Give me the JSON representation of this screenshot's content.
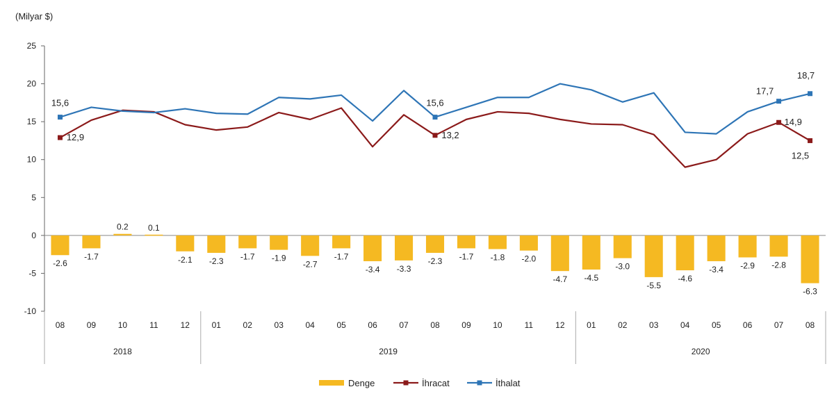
{
  "chart_data": {
    "type": "bar+line",
    "unit_label": "(Milyar $)",
    "categories": [
      "08",
      "09",
      "10",
      "11",
      "12",
      "01",
      "02",
      "03",
      "04",
      "05",
      "06",
      "07",
      "08",
      "09",
      "10",
      "11",
      "12",
      "01",
      "02",
      "03",
      "04",
      "05",
      "06",
      "07",
      "08"
    ],
    "year_groups": [
      {
        "label": "2018",
        "start": 0,
        "count": 5
      },
      {
        "label": "2019",
        "start": 5,
        "count": 12
      },
      {
        "label": "2020",
        "start": 17,
        "count": 8
      }
    ],
    "ylim": [
      -10,
      25
    ],
    "yticks": [
      -10,
      -5,
      0,
      5,
      10,
      15,
      20,
      25
    ],
    "series": [
      {
        "name": "Denge",
        "kind": "bar",
        "color": "#F5B922",
        "values": [
          -2.6,
          -1.7,
          0.2,
          0.1,
          -2.1,
          -2.3,
          -1.7,
          -1.9,
          -2.7,
          -1.7,
          -3.4,
          -3.3,
          -2.3,
          -1.7,
          -1.8,
          -2.0,
          -4.7,
          -4.5,
          -3.0,
          -5.5,
          -4.6,
          -3.4,
          -2.9,
          -2.8,
          -6.3
        ],
        "labels": [
          "-2.6",
          "-1.7",
          "0.2",
          "0.1",
          "-2.1",
          "-2.3",
          "-1.7",
          "-1.9",
          "-2.7",
          "-1.7",
          "-3.4",
          "-3.3",
          "-2.3",
          "-1.7",
          "-1.8",
          "-2.0",
          "-4.7",
          "-4.5",
          "-3.0",
          "-5.5",
          "-4.6",
          "-3.4",
          "-2.9",
          "-2.8",
          "-6.3"
        ]
      },
      {
        "name": "İhracat",
        "kind": "line",
        "color": "#8B1A1A",
        "values": [
          12.9,
          15.2,
          16.5,
          16.3,
          14.6,
          13.9,
          14.3,
          16.2,
          15.3,
          16.8,
          11.7,
          15.9,
          13.2,
          15.3,
          16.3,
          16.1,
          15.3,
          14.7,
          14.6,
          13.3,
          9.0,
          10.0,
          13.4,
          14.9,
          12.5
        ],
        "callouts": [
          {
            "index": 0,
            "text": "12,9"
          },
          {
            "index": 12,
            "text": "13,2"
          },
          {
            "index": 23,
            "text": "14,9"
          },
          {
            "index": 24,
            "text": "12,5"
          }
        ]
      },
      {
        "name": "İthalat",
        "kind": "line",
        "color": "#2E75B6",
        "values": [
          15.6,
          16.9,
          16.4,
          16.2,
          16.7,
          16.1,
          16.0,
          18.2,
          18.0,
          18.5,
          15.1,
          19.1,
          15.6,
          16.9,
          18.2,
          18.2,
          20.0,
          19.2,
          17.6,
          18.8,
          13.6,
          13.4,
          16.3,
          17.7,
          18.7
        ],
        "callouts": [
          {
            "index": 0,
            "text": "15,6"
          },
          {
            "index": 12,
            "text": "15,6"
          },
          {
            "index": 23,
            "text": "17,7"
          },
          {
            "index": 24,
            "text": "18,7"
          }
        ]
      }
    ],
    "legend": {
      "position": "bottom"
    }
  }
}
